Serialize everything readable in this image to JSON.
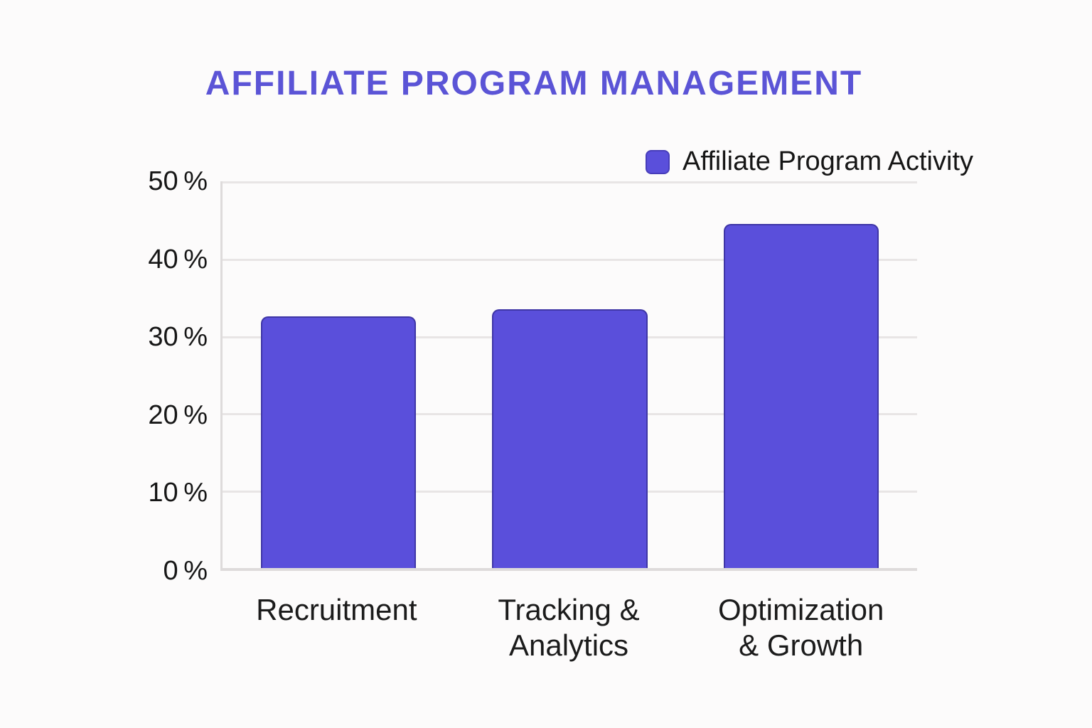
{
  "chart_data": {
    "type": "bar",
    "title": "AFFILIATE PROGRAM MANAGEMENT",
    "categories": [
      "Recruitment",
      "Tracking &\nAnalytics",
      "Optimization\n& Growth"
    ],
    "series": [
      {
        "name": "Affiliate Program Activity",
        "values": [
          32.5,
          33.5,
          44.5
        ]
      }
    ],
    "xlabel": "",
    "ylabel": "",
    "ylim": [
      0,
      50
    ],
    "yticks": [
      0,
      10,
      20,
      30,
      40,
      50
    ],
    "ytick_labels": [
      "0 %",
      "10 %",
      "20 %",
      "30 %",
      "40 %",
      "50 %"
    ],
    "grid": true,
    "legend_position": "top-right",
    "colors": {
      "bar_fill": "#5a4fdb",
      "bar_border": "#39309e",
      "title": "#5b54d6",
      "gridline": "#e8e5e5",
      "axis_line": "#dedbdb",
      "text": "#161616",
      "background": "#fcfbfb"
    }
  }
}
